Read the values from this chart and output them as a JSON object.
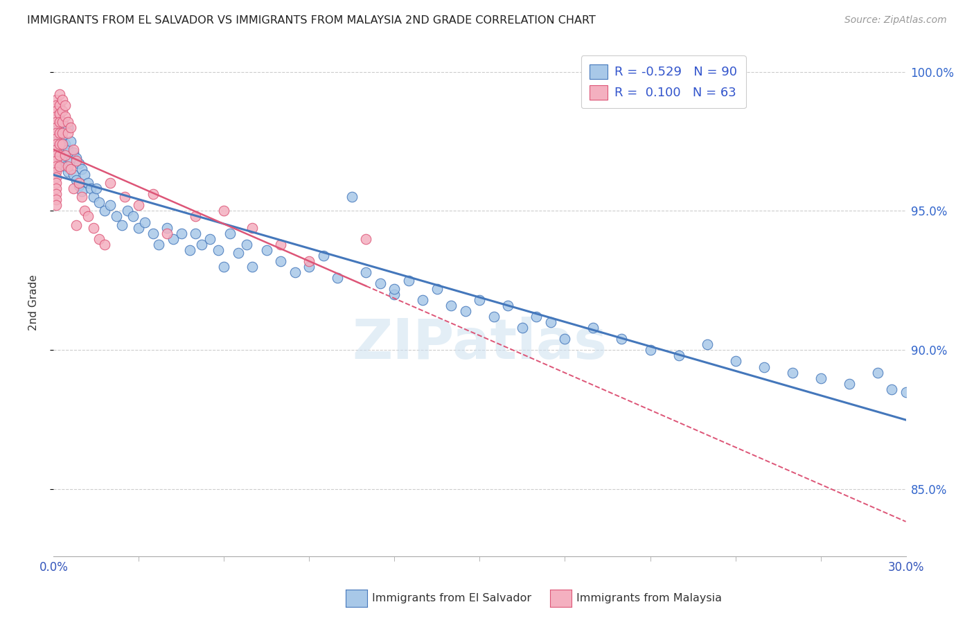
{
  "title": "IMMIGRANTS FROM EL SALVADOR VS IMMIGRANTS FROM MALAYSIA 2ND GRADE CORRELATION CHART",
  "source": "Source: ZipAtlas.com",
  "ylabel": "2nd Grade",
  "color_blue": "#a8c8e8",
  "color_pink": "#f4b0c0",
  "color_blue_line": "#4477bb",
  "color_pink_line": "#dd5577",
  "color_legend_text": "#3355cc",
  "watermark": "ZIPatlas",
  "xlim": [
    0.0,
    0.3
  ],
  "ylim": [
    0.826,
    1.008
  ],
  "ytick_vals": [
    0.85,
    0.9,
    0.95,
    1.0
  ],
  "ytick_labels": [
    "85.0%",
    "90.0%",
    "95.0%",
    "100.0%"
  ],
  "legend_line1": "R = -0.529   N = 90",
  "legend_line2": "R =  0.100   N = 63",
  "el_salvador_x": [
    0.001,
    0.001,
    0.001,
    0.001,
    0.002,
    0.002,
    0.002,
    0.003,
    0.003,
    0.003,
    0.004,
    0.004,
    0.005,
    0.005,
    0.005,
    0.006,
    0.006,
    0.007,
    0.007,
    0.008,
    0.008,
    0.009,
    0.009,
    0.01,
    0.01,
    0.011,
    0.012,
    0.013,
    0.014,
    0.015,
    0.016,
    0.018,
    0.02,
    0.022,
    0.024,
    0.026,
    0.028,
    0.03,
    0.032,
    0.035,
    0.037,
    0.04,
    0.042,
    0.045,
    0.048,
    0.05,
    0.052,
    0.055,
    0.058,
    0.06,
    0.062,
    0.065,
    0.068,
    0.07,
    0.075,
    0.08,
    0.085,
    0.09,
    0.095,
    0.1,
    0.105,
    0.11,
    0.115,
    0.12,
    0.125,
    0.13,
    0.135,
    0.14,
    0.15,
    0.155,
    0.16,
    0.165,
    0.17,
    0.18,
    0.19,
    0.2,
    0.21,
    0.22,
    0.24,
    0.25,
    0.26,
    0.27,
    0.28,
    0.29,
    0.295,
    0.3,
    0.12,
    0.145,
    0.175,
    0.23
  ],
  "el_salvador_y": [
    0.98,
    0.975,
    0.97,
    0.965,
    0.985,
    0.978,
    0.972,
    0.982,
    0.976,
    0.968,
    0.974,
    0.966,
    0.98,
    0.972,
    0.964,
    0.975,
    0.968,
    0.971,
    0.963,
    0.969,
    0.961,
    0.967,
    0.959,
    0.965,
    0.957,
    0.963,
    0.96,
    0.958,
    0.955,
    0.958,
    0.953,
    0.95,
    0.952,
    0.948,
    0.945,
    0.95,
    0.948,
    0.944,
    0.946,
    0.942,
    0.938,
    0.944,
    0.94,
    0.942,
    0.936,
    0.942,
    0.938,
    0.94,
    0.936,
    0.93,
    0.942,
    0.935,
    0.938,
    0.93,
    0.936,
    0.932,
    0.928,
    0.93,
    0.934,
    0.926,
    0.955,
    0.928,
    0.924,
    0.92,
    0.925,
    0.918,
    0.922,
    0.916,
    0.918,
    0.912,
    0.916,
    0.908,
    0.912,
    0.904,
    0.908,
    0.904,
    0.9,
    0.898,
    0.896,
    0.894,
    0.892,
    0.89,
    0.888,
    0.892,
    0.886,
    0.885,
    0.922,
    0.914,
    0.91,
    0.902
  ],
  "malaysia_x": [
    0.001,
    0.001,
    0.001,
    0.001,
    0.001,
    0.001,
    0.001,
    0.001,
    0.001,
    0.001,
    0.001,
    0.001,
    0.001,
    0.001,
    0.001,
    0.001,
    0.001,
    0.001,
    0.001,
    0.001,
    0.002,
    0.002,
    0.002,
    0.002,
    0.002,
    0.002,
    0.002,
    0.002,
    0.003,
    0.003,
    0.003,
    0.003,
    0.003,
    0.004,
    0.004,
    0.004,
    0.005,
    0.005,
    0.005,
    0.006,
    0.006,
    0.007,
    0.007,
    0.008,
    0.008,
    0.009,
    0.01,
    0.011,
    0.012,
    0.014,
    0.016,
    0.018,
    0.02,
    0.025,
    0.03,
    0.035,
    0.04,
    0.05,
    0.06,
    0.07,
    0.08,
    0.09,
    0.11
  ],
  "malaysia_y": [
    0.99,
    0.988,
    0.986,
    0.984,
    0.982,
    0.98,
    0.978,
    0.976,
    0.974,
    0.972,
    0.97,
    0.968,
    0.966,
    0.964,
    0.962,
    0.96,
    0.958,
    0.956,
    0.954,
    0.952,
    0.992,
    0.988,
    0.985,
    0.982,
    0.978,
    0.974,
    0.97,
    0.966,
    0.99,
    0.986,
    0.982,
    0.978,
    0.974,
    0.988,
    0.984,
    0.97,
    0.982,
    0.978,
    0.966,
    0.98,
    0.965,
    0.972,
    0.958,
    0.968,
    0.945,
    0.96,
    0.955,
    0.95,
    0.948,
    0.944,
    0.94,
    0.938,
    0.96,
    0.955,
    0.952,
    0.956,
    0.942,
    0.948,
    0.95,
    0.944,
    0.938,
    0.932,
    0.94
  ]
}
